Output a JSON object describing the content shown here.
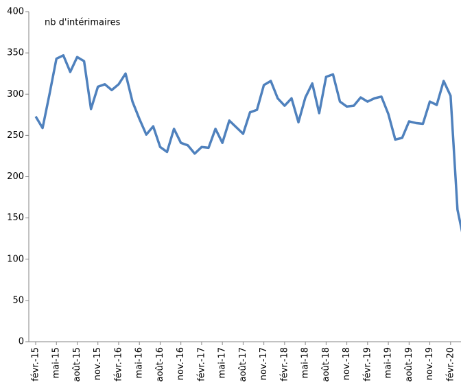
{
  "chart_data": {
    "type": "line",
    "annotation": "nb d'intérimaires",
    "categories": [
      "févr.-15",
      null,
      null,
      "mai-15",
      null,
      null,
      "août-15",
      null,
      null,
      "nov.-15",
      null,
      null,
      "févr.-16",
      null,
      null,
      "mai-16",
      null,
      null,
      "août-16",
      null,
      null,
      "nov.-16",
      null,
      null,
      "févr.-17",
      null,
      null,
      "mai-17",
      null,
      null,
      "août-17",
      null,
      null,
      "nov.-17",
      null,
      null,
      "févr.-18",
      null,
      null,
      "mai-18",
      null,
      null,
      "août-18",
      null,
      null,
      "nov.-18",
      null,
      null,
      "févr.-19",
      null,
      null,
      "mai-19",
      null,
      null,
      "août-19",
      null,
      null,
      "nov.-19",
      null,
      null,
      "févr.-20",
      null,
      null
    ],
    "series": [
      {
        "name": "nb d'intérimaires",
        "color": "#4f81bd",
        "values": [
          273,
          259,
          300,
          343,
          347,
          327,
          345,
          340,
          282,
          309,
          312,
          305,
          312,
          325,
          291,
          270,
          251,
          261,
          236,
          230,
          258,
          241,
          238,
          228,
          236,
          235,
          258,
          241,
          268,
          260,
          252,
          278,
          281,
          311,
          316,
          295,
          286,
          295,
          266,
          296,
          313,
          277,
          321,
          324,
          291,
          285,
          286,
          296,
          291,
          295,
          297,
          276,
          245,
          247,
          267,
          265,
          264,
          291,
          287,
          316,
          298,
          160,
          120
        ]
      }
    ],
    "ylim": [
      0,
      400
    ],
    "yticks": [
      0,
      50,
      100,
      150,
      200,
      250,
      300,
      350,
      400
    ],
    "grid": false
  }
}
